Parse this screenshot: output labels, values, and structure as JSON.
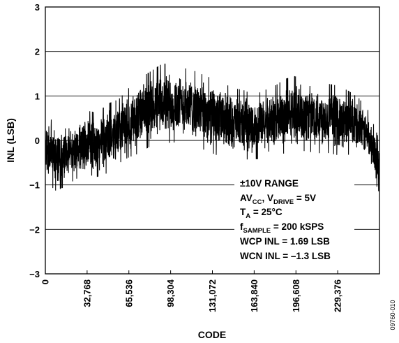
{
  "chart_data": {
    "type": "line",
    "xlabel": "CODE",
    "ylabel": "INL (LSB)",
    "xlim": [
      0,
      262143
    ],
    "ylim": [
      -3,
      3
    ],
    "grid": "horizontal",
    "yticks": [
      "3",
      "2",
      "1",
      "0",
      "−1",
      "−2",
      "−3"
    ],
    "xticks": [
      "0",
      "32,768",
      "65,536",
      "98,304",
      "131,072",
      "163,840",
      "196,608",
      "229,376"
    ],
    "series": [
      {
        "x": [
          0,
          8192,
          16384,
          24576,
          32768,
          40960,
          49152,
          57344,
          65536,
          73728,
          81920,
          90112,
          98304,
          106496,
          114688,
          122880,
          131072,
          139264,
          147456,
          155648,
          163840,
          172032,
          180224,
          188416,
          196608,
          204800,
          212992,
          221184,
          229376,
          237568,
          245760,
          253952,
          262143
        ],
        "y": [
          -0.2,
          -0.35,
          -0.3,
          -0.2,
          -0.05,
          -0.1,
          0.05,
          0.2,
          0.4,
          0.55,
          0.7,
          0.8,
          0.85,
          0.8,
          0.75,
          0.65,
          0.55,
          0.45,
          0.4,
          0.35,
          0.3,
          0.35,
          0.45,
          0.55,
          0.6,
          0.6,
          0.55,
          0.5,
          0.45,
          0.4,
          0.3,
          0.05,
          -0.6
        ],
        "band": [
          0.6,
          0.65,
          0.6,
          0.55,
          0.6,
          0.6,
          0.65,
          0.6,
          0.65,
          0.7,
          0.7,
          0.75,
          0.75,
          0.7,
          0.7,
          0.7,
          0.7,
          0.7,
          0.65,
          0.65,
          0.6,
          0.65,
          0.65,
          0.7,
          0.7,
          0.7,
          0.7,
          0.65,
          0.65,
          0.6,
          0.55,
          0.5,
          0.5
        ]
      }
    ],
    "annotation": {
      "line1": "±10V RANGE",
      "line2_a": "AV",
      "line2_a_sub": "CC",
      "line2_b": ", V",
      "line2_b_sub": "DRIVE",
      "line2_c": " = 5V",
      "line3_a": "T",
      "line3_a_sub": "A",
      "line3_b": " = 25°C",
      "line4_a": "f",
      "line4_a_sub": "SAMPLE",
      "line4_b": " = 200 kSPS",
      "line5": "WCP INL = 1.69 LSB",
      "line6": "WCN INL = –1.3 LSB"
    },
    "figure_id": "09760-010"
  }
}
